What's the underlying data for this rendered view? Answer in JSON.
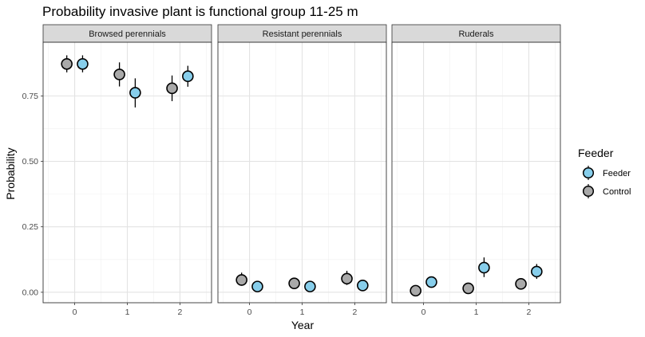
{
  "chart_data": {
    "type": "scatter",
    "title": "Probability invasive plant is functional group 11-25 m",
    "xlabel": "Year",
    "ylabel": "Probability",
    "x_ticks": [
      "0",
      "1",
      "2"
    ],
    "y_ticks": [
      "0.00",
      "0.25",
      "0.50",
      "0.75"
    ],
    "ylim": [
      -0.04,
      0.955
    ],
    "xlim": [
      -0.6,
      2.6
    ],
    "grid": true,
    "legend": {
      "title": "Feeder",
      "position": "right",
      "entries": [
        {
          "label": "Feeder",
          "color": "#87CEEB"
        },
        {
          "label": "Control",
          "color": "#A9A9A9"
        }
      ]
    },
    "dodge": 0.15,
    "panels": [
      {
        "strip": "Browsed perennials",
        "series": [
          {
            "name": "Control",
            "x": [
              0,
              1,
              2
            ],
            "y": [
              0.872,
              0.832,
              0.779
            ],
            "lower": [
              0.84,
              0.786,
              0.73
            ],
            "upper": [
              0.905,
              0.878,
              0.828
            ]
          },
          {
            "name": "Feeder",
            "x": [
              0,
              1,
              2
            ],
            "y": [
              0.872,
              0.762,
              0.825
            ],
            "lower": [
              0.84,
              0.706,
              0.785
            ],
            "upper": [
              0.905,
              0.817,
              0.865
            ]
          }
        ]
      },
      {
        "strip": "Resistant perennials",
        "series": [
          {
            "name": "Control",
            "x": [
              0,
              1,
              2
            ],
            "y": [
              0.047,
              0.034,
              0.052
            ],
            "lower": [
              0.025,
              0.02,
              0.028
            ],
            "upper": [
              0.075,
              0.052,
              0.082
            ]
          },
          {
            "name": "Feeder",
            "x": [
              0,
              1,
              2
            ],
            "y": [
              0.022,
              0.022,
              0.026
            ],
            "lower": [
              0.01,
              0.012,
              0.014
            ],
            "upper": [
              0.035,
              0.034,
              0.04
            ]
          }
        ]
      },
      {
        "strip": "Ruderals",
        "series": [
          {
            "name": "Control",
            "x": [
              0,
              1,
              2
            ],
            "y": [
              0.006,
              0.015,
              0.032
            ],
            "lower": [
              0.001,
              0.006,
              0.018
            ],
            "upper": [
              0.016,
              0.028,
              0.048
            ]
          },
          {
            "name": "Feeder",
            "x": [
              0,
              1,
              2
            ],
            "y": [
              0.039,
              0.094,
              0.079
            ],
            "lower": [
              0.022,
              0.058,
              0.051
            ],
            "upper": [
              0.058,
              0.133,
              0.108
            ]
          }
        ]
      }
    ]
  }
}
